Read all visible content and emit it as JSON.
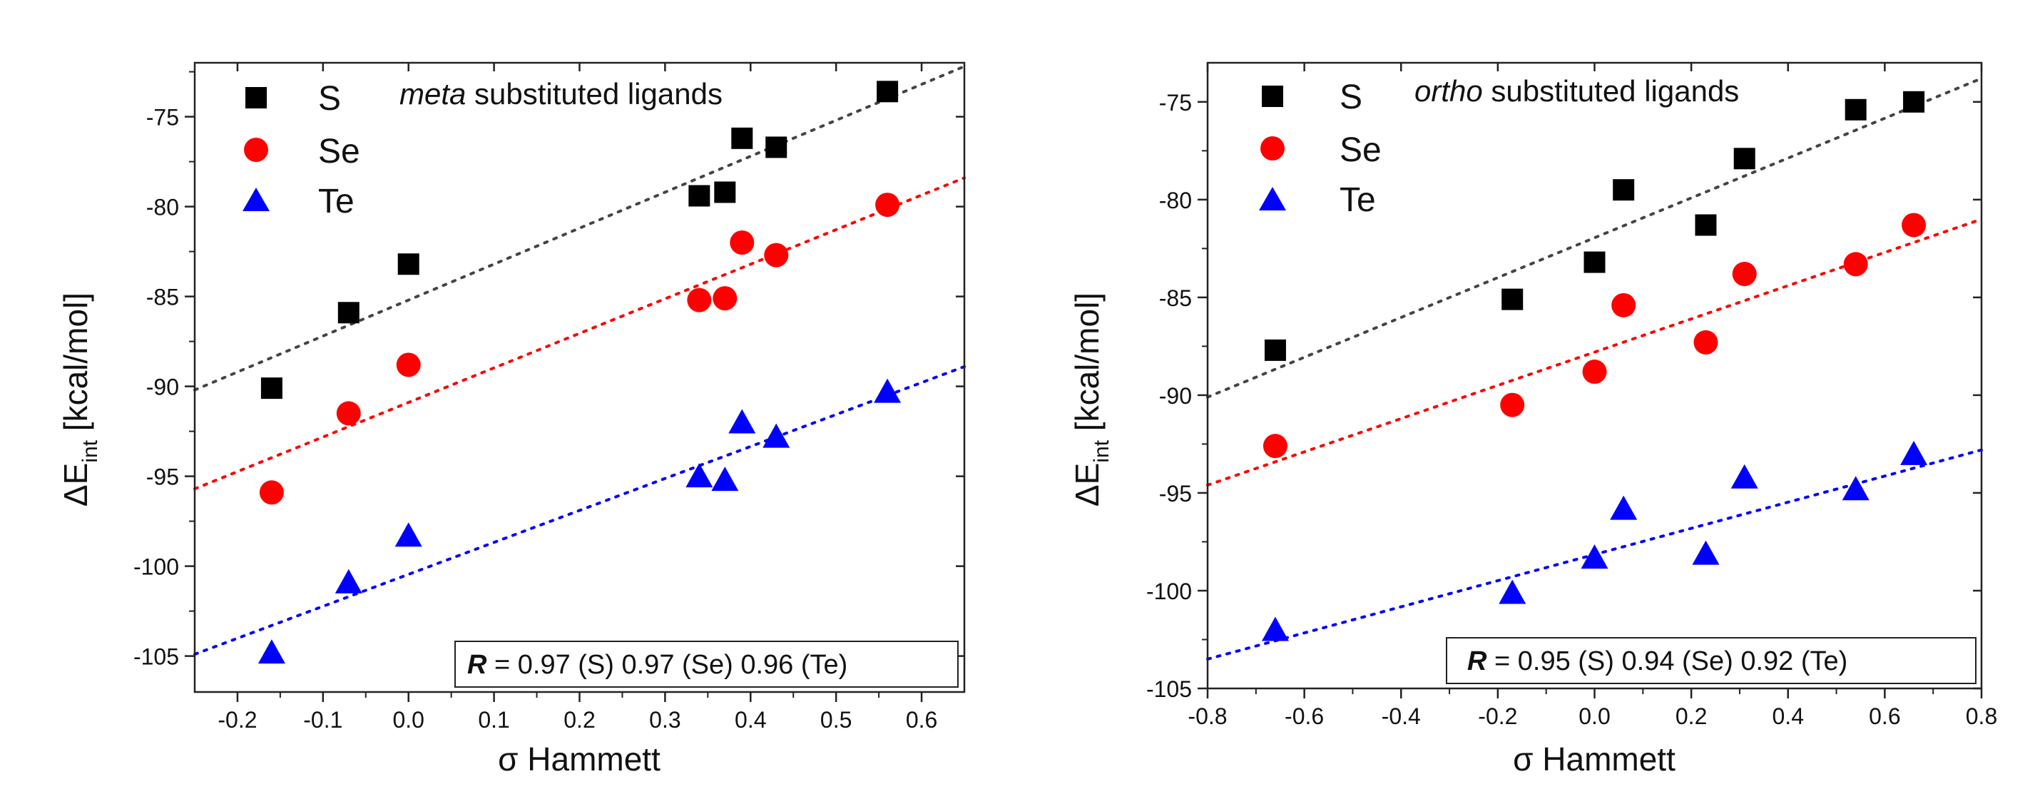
{
  "chart_data": [
    {
      "type": "scatter",
      "annotation_italic": "meta",
      "annotation_rest": " substituted ligands",
      "xlabel_sigma": "σ",
      "xlabel_rest": " Hammett",
      "ylabel_delta": "ΔE",
      "ylabel_sub": "int",
      "ylabel_rest": " [kcal/mol]",
      "xlim": [
        -0.25,
        0.65
      ],
      "ylim": [
        -107,
        -72
      ],
      "xticks": [
        -0.2,
        -0.1,
        0.0,
        0.1,
        0.2,
        0.3,
        0.4,
        0.5,
        0.6
      ],
      "xtick_labels": [
        "-0.2",
        "-0.1",
        "0.0",
        "0.1",
        "0.2",
        "0.3",
        "0.4",
        "0.5",
        "0.6"
      ],
      "yticks": [
        -105,
        -100,
        -95,
        -90,
        -85,
        -80,
        -75
      ],
      "ytick_labels": [
        "-105",
        "-100",
        "-95",
        "-90",
        "-85",
        "-80",
        "-75"
      ],
      "r_label": "R",
      "r_text": " = 0.97 (S) 0.97 (Se) 0.96 (Te)",
      "series": [
        {
          "name": "S",
          "marker": "square",
          "color": "#000000",
          "line_color": "#444444",
          "x": [
            -0.16,
            -0.07,
            0.0,
            0.34,
            0.37,
            0.39,
            0.43,
            0.56
          ],
          "y": [
            -90.1,
            -85.9,
            -83.2,
            -79.4,
            -79.2,
            -76.2,
            -76.7,
            -73.6
          ],
          "fit": [
            [
              -0.25,
              -90.2
            ],
            [
              0.65,
              -72.2
            ]
          ]
        },
        {
          "name": "Se",
          "marker": "circle",
          "color": "#ff0000",
          "line_color": "#ff0000",
          "x": [
            -0.16,
            -0.07,
            0.0,
            0.34,
            0.37,
            0.39,
            0.43,
            0.56
          ],
          "y": [
            -95.9,
            -91.5,
            -88.8,
            -85.2,
            -85.1,
            -82.0,
            -82.7,
            -79.9
          ],
          "fit": [
            [
              -0.25,
              -95.7
            ],
            [
              0.65,
              -78.4
            ]
          ]
        },
        {
          "name": "Te",
          "marker": "triangle",
          "color": "#0000ff",
          "line_color": "#0000ff",
          "x": [
            -0.16,
            -0.07,
            0.0,
            0.34,
            0.37,
            0.39,
            0.43,
            0.56
          ],
          "y": [
            -104.9,
            -101.0,
            -98.4,
            -95.1,
            -95.3,
            -92.1,
            -92.9,
            -90.4
          ],
          "fit": [
            [
              -0.25,
              -104.9
            ],
            [
              0.65,
              -88.9
            ]
          ]
        }
      ]
    },
    {
      "type": "scatter",
      "annotation_italic": "ortho",
      "annotation_rest": " substituted ligands",
      "xlabel_sigma": "σ",
      "xlabel_rest": " Hammett",
      "ylabel_delta": "ΔE",
      "ylabel_sub": "int",
      "ylabel_rest": " [kcal/mol]",
      "xlim": [
        -0.8,
        0.8
      ],
      "ylim": [
        -105,
        -73
      ],
      "xticks": [
        -0.8,
        -0.6,
        -0.4,
        -0.2,
        0.0,
        0.2,
        0.4,
        0.6,
        0.8
      ],
      "xtick_labels": [
        "-0.8",
        "-0.6",
        "-0.4",
        "-0.2",
        "0.0",
        "0.2",
        "0.4",
        "0.6",
        "0.8"
      ],
      "yticks": [
        -105,
        -100,
        -95,
        -90,
        -85,
        -80,
        -75
      ],
      "ytick_labels": [
        "-105",
        "-100",
        "-95",
        "-90",
        "-85",
        "-80",
        "-75"
      ],
      "r_label": "R",
      "r_text": " = 0.95 (S) 0.94 (Se) 0.92 (Te)",
      "series": [
        {
          "name": "S",
          "marker": "square",
          "color": "#000000",
          "line_color": "#444444",
          "x": [
            -0.66,
            -0.17,
            0.0,
            0.06,
            0.23,
            0.31,
            0.54,
            0.66
          ],
          "y": [
            -87.7,
            -85.1,
            -83.2,
            -79.5,
            -81.3,
            -77.9,
            -75.4,
            -75.0
          ],
          "fit": [
            [
              -0.8,
              -90.1
            ],
            [
              0.8,
              -73.8
            ]
          ]
        },
        {
          "name": "Se",
          "marker": "circle",
          "color": "#ff0000",
          "line_color": "#ff0000",
          "x": [
            -0.66,
            -0.17,
            0.0,
            0.06,
            0.23,
            0.31,
            0.54,
            0.66
          ],
          "y": [
            -92.6,
            -90.5,
            -88.8,
            -85.4,
            -87.3,
            -83.8,
            -83.3,
            -81.3
          ],
          "fit": [
            [
              -0.8,
              -94.6
            ],
            [
              0.8,
              -81.0
            ]
          ]
        },
        {
          "name": "Te",
          "marker": "triangle",
          "color": "#0000ff",
          "line_color": "#0000ff",
          "x": [
            -0.66,
            -0.17,
            0.0,
            0.06,
            0.23,
            0.31,
            0.54,
            0.66
          ],
          "y": [
            -102.1,
            -100.2,
            -98.4,
            -95.9,
            -98.2,
            -94.3,
            -94.9,
            -93.1
          ],
          "fit": [
            [
              -0.8,
              -103.5
            ],
            [
              0.8,
              -92.8
            ]
          ]
        }
      ]
    }
  ]
}
